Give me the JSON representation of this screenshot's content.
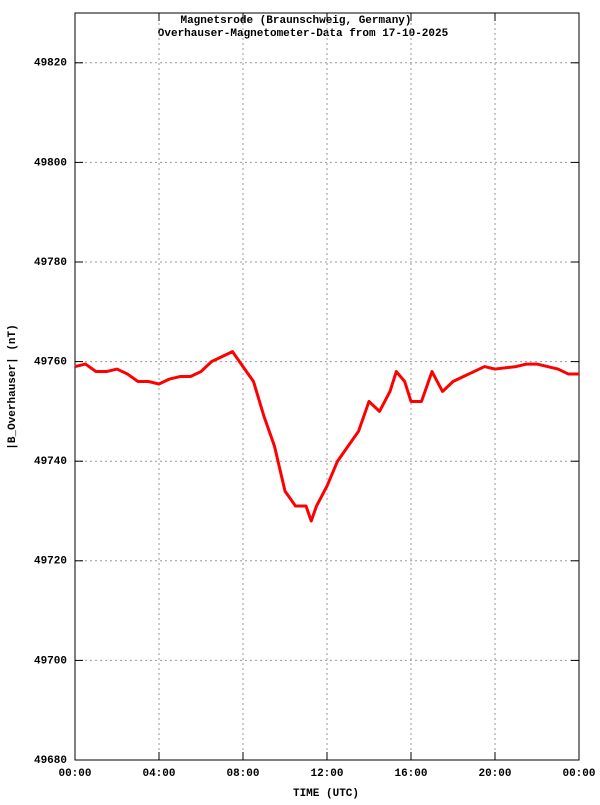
{
  "chart_data": {
    "type": "line",
    "title": "Magnetsrode (Braunschweig, Germany)",
    "subtitle": "Overhauser-Magnetometer-Data from 17-10-2025",
    "x_label": "TIME (UTC)",
    "y_label": "|B_Overhauser| (nT)",
    "x": [
      0,
      0.5,
      1,
      1.5,
      2,
      2.5,
      3,
      3.5,
      4,
      4.5,
      5,
      5.5,
      6,
      6.5,
      7,
      7.5,
      8,
      8.5,
      9,
      9.5,
      10,
      10.5,
      11,
      11.25,
      11.5,
      12,
      12.5,
      13,
      13.5,
      14,
      14.5,
      15,
      15.3,
      15.7,
      16,
      16.5,
      17,
      17.5,
      18,
      18.5,
      19,
      19.5,
      20,
      21,
      21.5,
      22,
      22.5,
      23,
      23.5,
      24
    ],
    "series": [
      {
        "name": "|B_Overhauser|",
        "color": "#ff0000",
        "values": [
          49759,
          49759.5,
          49758,
          49758,
          49758.5,
          49757.5,
          49756,
          49756,
          49755.5,
          49756.5,
          49757,
          49757,
          49758,
          49760,
          49761,
          49762,
          49759,
          49756,
          49749,
          49743,
          49734,
          49731,
          49731,
          49728,
          49731,
          49735,
          49740,
          49743,
          49746,
          49752,
          49750,
          49754,
          49758,
          49756,
          49752,
          49752,
          49758,
          49754,
          49756,
          49757,
          49758,
          49759,
          49758.5,
          49759,
          49759.5,
          49759.5,
          49759,
          49758.5,
          49757.5,
          49757.5
        ]
      }
    ],
    "xlim": [
      0,
      24
    ],
    "xticks": [
      {
        "value": 0,
        "label": "00:00"
      },
      {
        "value": 4,
        "label": "04:00"
      },
      {
        "value": 8,
        "label": "08:00"
      },
      {
        "value": 12,
        "label": "12:00"
      },
      {
        "value": 16,
        "label": "16:00"
      },
      {
        "value": 20,
        "label": "20:00"
      },
      {
        "value": 24,
        "label": "00:00"
      }
    ],
    "ylim": [
      49680,
      49830
    ],
    "yticks": [
      49680,
      49700,
      49720,
      49740,
      49760,
      49780,
      49800,
      49820
    ],
    "grid": true
  }
}
